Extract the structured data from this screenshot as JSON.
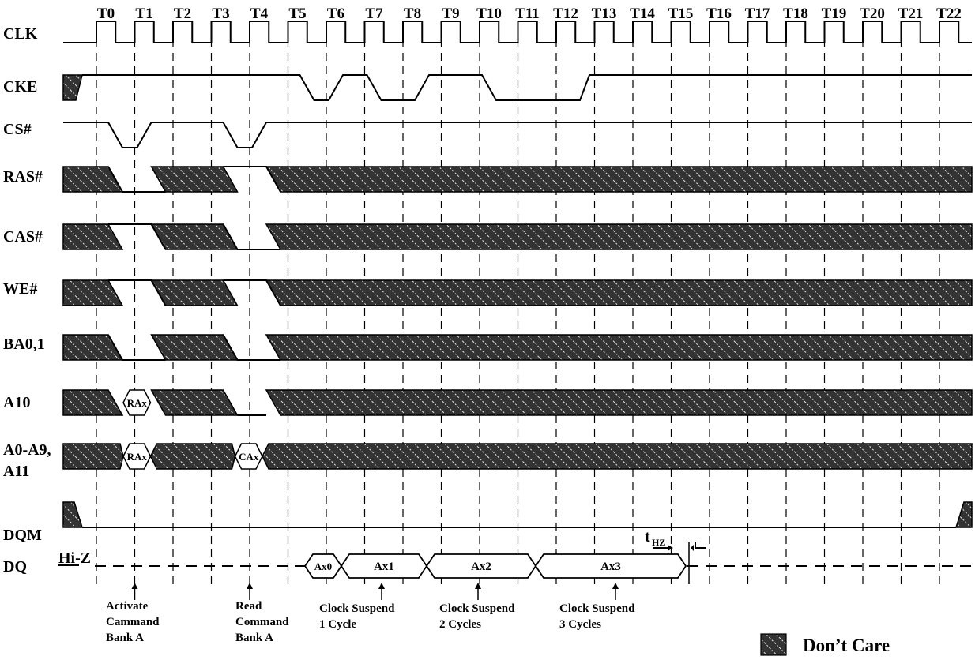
{
  "clock_ticks": [
    "T0",
    "T1",
    "T2",
    "T3",
    "T4",
    "T5",
    "T6",
    "T7",
    "T8",
    "T9",
    "T10",
    "T11",
    "T12",
    "T13",
    "T14",
    "T15",
    "T16",
    "T17",
    "T18",
    "T19",
    "T20",
    "T21",
    "T22"
  ],
  "signals": [
    {
      "id": "clk",
      "label": "CLK"
    },
    {
      "id": "cke",
      "label": "CKE"
    },
    {
      "id": "cs",
      "label": "CS#"
    },
    {
      "id": "ras",
      "label": "RAS#"
    },
    {
      "id": "cas",
      "label": "CAS#"
    },
    {
      "id": "we",
      "label": "WE#"
    },
    {
      "id": "ba",
      "label": "BA0,1"
    },
    {
      "id": "a10",
      "label": "A10"
    },
    {
      "id": "addr",
      "label": "A0-A9,\nA11"
    },
    {
      "id": "dqm",
      "label": "DQM"
    },
    {
      "id": "dq",
      "label": "DQ"
    }
  ],
  "bus_values": {
    "a10_row": "RAx",
    "addr_row": "RAx",
    "addr_col": "CAx",
    "dq": [
      "Ax0",
      "Ax1",
      "Ax2",
      "Ax3"
    ]
  },
  "dq_state": "Hi-Z",
  "thz_label": {
    "main": "t",
    "sub": "HZ"
  },
  "annotations": [
    {
      "id": "activate",
      "lines": [
        "Activate",
        "Cammand",
        "Bank A"
      ]
    },
    {
      "id": "read",
      "lines": [
        "Read",
        "Command",
        "Bank A"
      ]
    },
    {
      "id": "suspend1",
      "lines": [
        "Clock Suspend",
        "1 Cycle"
      ]
    },
    {
      "id": "suspend2",
      "lines": [
        "Clock Suspend",
        "2 Cycles"
      ]
    },
    {
      "id": "suspend3",
      "lines": [
        "Clock Suspend",
        "3 Cycles"
      ]
    }
  ],
  "legend": {
    "label": "Don’t Care"
  },
  "colors": {
    "line": "#000000",
    "hatch_fill": "#333333",
    "hatch_stripe": "#e6e6e6",
    "background": "#ffffff"
  }
}
